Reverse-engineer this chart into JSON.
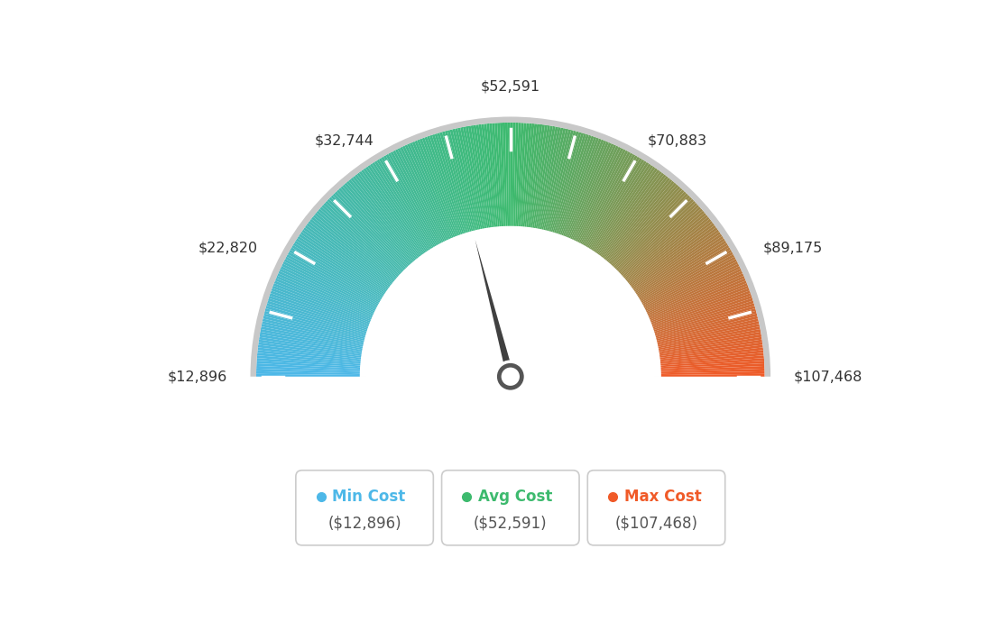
{
  "min_val": 12896,
  "max_val": 107468,
  "avg_val": 52591,
  "min_cost_label": "Min Cost",
  "avg_cost_label": "Avg Cost",
  "max_cost_label": "Max Cost",
  "min_cost_val": "$12,896",
  "avg_cost_val": "$52,591",
  "max_cost_val": "$107,468",
  "min_color": "#4db8e8",
  "avg_color": "#3dba6e",
  "max_color": "#f05a28",
  "bg_color": "#ffffff",
  "needle_color": "#404040",
  "label_data": [
    [
      12896,
      180,
      "right",
      "center"
    ],
    [
      22820,
      153,
      "right",
      "center"
    ],
    [
      32744,
      126,
      "center",
      "bottom"
    ],
    [
      52591,
      90,
      "center",
      "bottom"
    ],
    [
      70883,
      54,
      "center",
      "bottom"
    ],
    [
      89175,
      27,
      "left",
      "center"
    ],
    [
      107468,
      0,
      "left",
      "center"
    ]
  ]
}
